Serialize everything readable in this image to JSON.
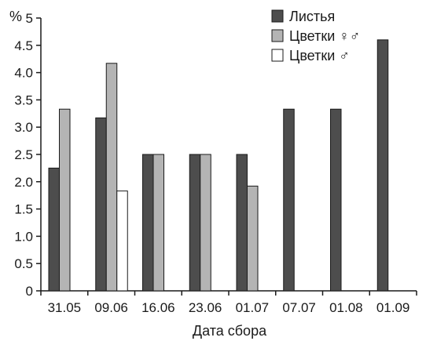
{
  "chart_data": {
    "type": "bar",
    "ylabel": "%",
    "xlabel": "Дата сбора",
    "ylim": [
      0,
      5
    ],
    "yticks": [
      "0",
      "0.5",
      "1.0",
      "1.5",
      "2.0",
      "2.5",
      "3.0",
      "3.5",
      "4.0",
      "4.5",
      "5"
    ],
    "categories": [
      "31.05",
      "09.06",
      "16.06",
      "23.06",
      "01.07",
      "07.07",
      "01.08",
      "01.09"
    ],
    "legend_position": "top-right",
    "grid": false,
    "series": [
      {
        "name": "Листья",
        "color": "#4d4d4d",
        "values": [
          2.25,
          3.17,
          2.5,
          2.5,
          2.5,
          3.33,
          3.33,
          4.6
        ]
      },
      {
        "name": "Цветки ♀♂",
        "color": "#b4b4b4",
        "values": [
          3.33,
          4.17,
          2.5,
          2.5,
          1.92,
          null,
          null,
          null
        ]
      },
      {
        "name": "Цветки ♂",
        "color": "#ffffff",
        "values": [
          null,
          1.83,
          null,
          null,
          null,
          null,
          null,
          null
        ]
      }
    ]
  }
}
